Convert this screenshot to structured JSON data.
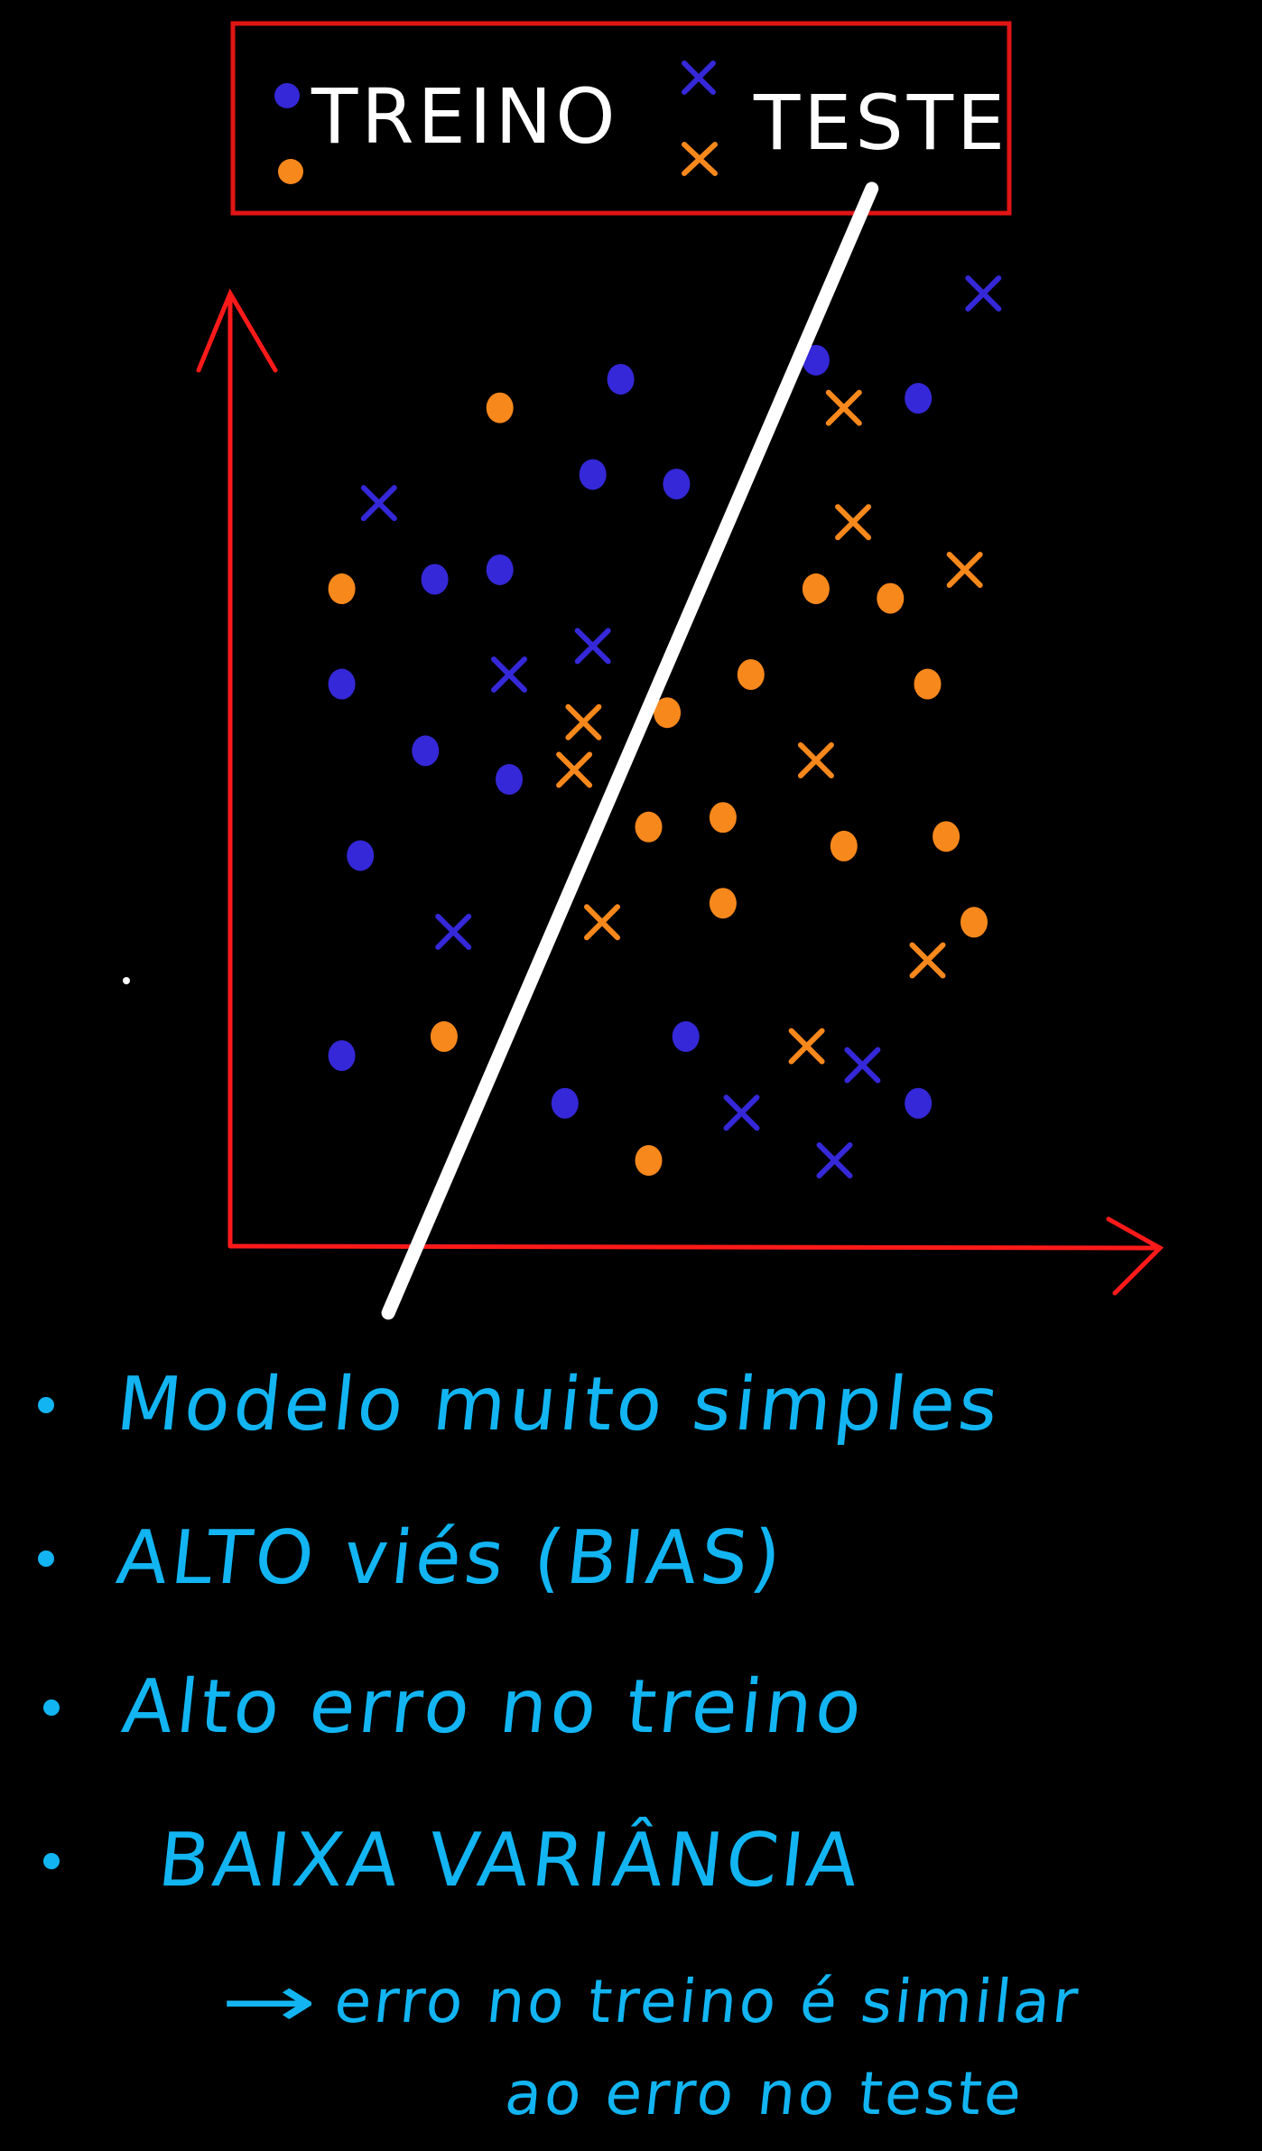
{
  "legend": {
    "train_label": "TREINO",
    "test_label": "TESTE"
  },
  "colors": {
    "background": "#000000",
    "class_a": "#3528d8",
    "class_b": "#f7881c",
    "axes": "#ff1a1a",
    "legend_border": "#e01515",
    "model_line": "#ffffff",
    "notes": "#12b5f2"
  },
  "chart_data": {
    "type": "scatter",
    "xlim": [
      0,
      10
    ],
    "ylim": [
      0,
      10
    ],
    "train_points": [
      {
        "x": 4.2,
        "y": 9.1,
        "cls": "a"
      },
      {
        "x": 6.3,
        "y": 9.3,
        "cls": "a"
      },
      {
        "x": 7.4,
        "y": 8.9,
        "cls": "a"
      },
      {
        "x": 2.9,
        "y": 8.8,
        "cls": "b"
      },
      {
        "x": 3.9,
        "y": 8.1,
        "cls": "a"
      },
      {
        "x": 4.8,
        "y": 8.0,
        "cls": "a"
      },
      {
        "x": 1.2,
        "y": 6.9,
        "cls": "b"
      },
      {
        "x": 2.2,
        "y": 7.0,
        "cls": "a"
      },
      {
        "x": 2.9,
        "y": 7.1,
        "cls": "a"
      },
      {
        "x": 6.3,
        "y": 6.9,
        "cls": "b"
      },
      {
        "x": 7.1,
        "y": 6.8,
        "cls": "b"
      },
      {
        "x": 1.2,
        "y": 5.9,
        "cls": "a"
      },
      {
        "x": 5.6,
        "y": 6.0,
        "cls": "b"
      },
      {
        "x": 7.5,
        "y": 5.9,
        "cls": "b"
      },
      {
        "x": 4.7,
        "y": 5.6,
        "cls": "b"
      },
      {
        "x": 2.1,
        "y": 5.2,
        "cls": "a"
      },
      {
        "x": 3.0,
        "y": 4.9,
        "cls": "a"
      },
      {
        "x": 4.5,
        "y": 4.4,
        "cls": "b"
      },
      {
        "x": 5.3,
        "y": 4.5,
        "cls": "b"
      },
      {
        "x": 6.6,
        "y": 4.2,
        "cls": "b"
      },
      {
        "x": 7.7,
        "y": 4.3,
        "cls": "b"
      },
      {
        "x": 1.4,
        "y": 4.1,
        "cls": "a"
      },
      {
        "x": 5.3,
        "y": 3.6,
        "cls": "b"
      },
      {
        "x": 8.0,
        "y": 3.4,
        "cls": "b"
      },
      {
        "x": 1.2,
        "y": 2.0,
        "cls": "a"
      },
      {
        "x": 2.3,
        "y": 2.2,
        "cls": "b"
      },
      {
        "x": 4.9,
        "y": 2.2,
        "cls": "a"
      },
      {
        "x": 3.6,
        "y": 1.5,
        "cls": "a"
      },
      {
        "x": 7.4,
        "y": 1.5,
        "cls": "a"
      },
      {
        "x": 4.5,
        "y": 0.9,
        "cls": "b"
      }
    ],
    "test_points": [
      {
        "x": 8.1,
        "y": 10.0,
        "cls": "a"
      },
      {
        "x": 6.6,
        "y": 8.8,
        "cls": "b"
      },
      {
        "x": 1.6,
        "y": 7.8,
        "cls": "a"
      },
      {
        "x": 6.7,
        "y": 7.6,
        "cls": "b"
      },
      {
        "x": 7.9,
        "y": 7.1,
        "cls": "b"
      },
      {
        "x": 3.9,
        "y": 6.3,
        "cls": "a"
      },
      {
        "x": 3.0,
        "y": 6.0,
        "cls": "a"
      },
      {
        "x": 3.8,
        "y": 5.5,
        "cls": "b"
      },
      {
        "x": 3.7,
        "y": 5.0,
        "cls": "b"
      },
      {
        "x": 6.3,
        "y": 5.1,
        "cls": "b"
      },
      {
        "x": 2.4,
        "y": 3.3,
        "cls": "a"
      },
      {
        "x": 4.0,
        "y": 3.4,
        "cls": "b"
      },
      {
        "x": 7.5,
        "y": 3.0,
        "cls": "b"
      },
      {
        "x": 6.2,
        "y": 2.1,
        "cls": "b"
      },
      {
        "x": 6.8,
        "y": 1.9,
        "cls": "a"
      },
      {
        "x": 5.5,
        "y": 1.4,
        "cls": "a"
      },
      {
        "x": 6.5,
        "y": 0.9,
        "cls": "a"
      }
    ],
    "model_line": {
      "x1": 1.7,
      "y1": -0.7,
      "x2": 6.9,
      "y2": 11.1
    }
  },
  "notes": {
    "items": [
      "Modelo muito simples",
      "ALTO viés (BIAS)",
      "Alto erro no treino",
      "BAIXA VARIÂNCIA"
    ],
    "detail": {
      "arrow": "→",
      "line1": "erro no treino é similar",
      "line2": "ao erro no teste"
    }
  }
}
